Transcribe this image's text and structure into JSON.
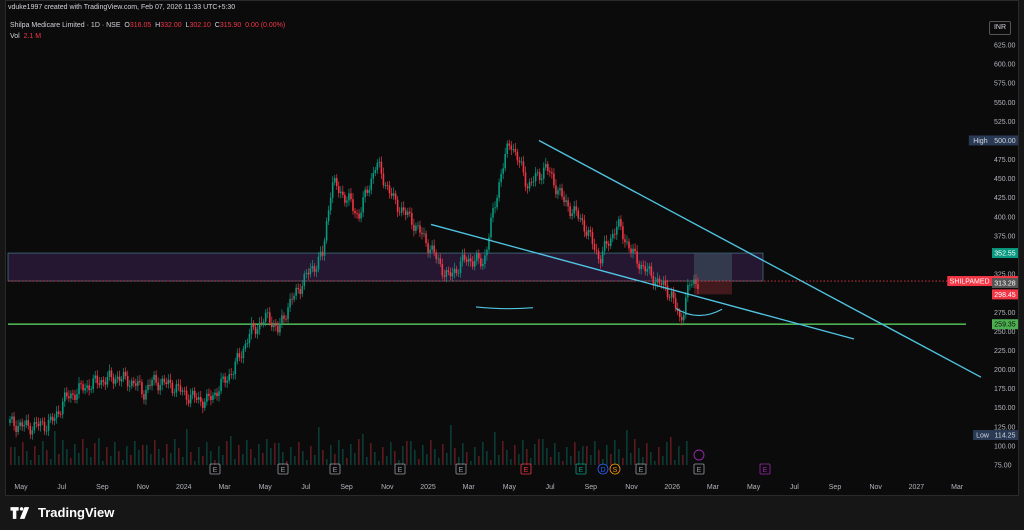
{
  "header": {
    "created": "vduke1997 created with TradingView.com, Feb 07, 2026 11:33 UTC+5:30",
    "symbol": "Shilpa Medicare Limited · 1D · NSE",
    "o_label": "O",
    "o_value": "316.05",
    "h_label": "H",
    "h_value": "332.00",
    "l_label": "L",
    "l_value": "302.10",
    "c_label": "C",
    "c_value": "315.90",
    "change": "0.00 (0.00%)",
    "vol_label": "Vol",
    "vol_value": "2.1 M"
  },
  "currency": "INR",
  "footer": {
    "brand": "TradingView"
  },
  "colors": {
    "background": "#0b0b0b",
    "up": "#089981",
    "down": "#f23645",
    "trendline": "#4fc3e0",
    "support": "#4caf50",
    "zone_fill": "#2a1a3a",
    "zone_border": "#4a8fa0"
  },
  "chart_data": {
    "type": "candlestick",
    "ylim": [
      75,
      650
    ],
    "yticks": [
      "625.00",
      "600.00",
      "575.00",
      "550.00",
      "525.00",
      "500.00",
      "475.00",
      "450.00",
      "425.00",
      "400.00",
      "375.00",
      "350.00",
      "325.00",
      "300.00",
      "275.00",
      "250.00",
      "225.00",
      "200.00",
      "175.00",
      "150.00",
      "125.00",
      "100.00",
      "75.00"
    ],
    "xticks": [
      "May",
      "Jul",
      "Sep",
      "Nov",
      "2024",
      "Mar",
      "May",
      "Jul",
      "Sep",
      "Nov",
      "2025",
      "Mar",
      "May",
      "Jul",
      "Sep",
      "Nov",
      "2026",
      "Mar",
      "May",
      "Jul",
      "Sep",
      "Nov",
      "2027",
      "Mar"
    ],
    "price_tags": [
      {
        "label": "High",
        "value": "500.00",
        "price": 500
      },
      {
        "label": "",
        "value": "352.55",
        "price": 352.55
      },
      {
        "label": "SHILPAMED",
        "value": "315.90",
        "price": 315.9
      },
      {
        "label": "",
        "value": "313.28",
        "price": 313.28
      },
      {
        "label": "",
        "value": "298.45",
        "price": 298.45
      },
      {
        "label": "",
        "value": "259.35",
        "price": 259.35
      },
      {
        "label": "Low",
        "value": "114.25",
        "price": 114.25
      }
    ],
    "price_path": [
      [
        0,
        130
      ],
      [
        0.02,
        125
      ],
      [
        0.04,
        128
      ],
      [
        0.05,
        135
      ],
      [
        0.06,
        160
      ],
      [
        0.08,
        175
      ],
      [
        0.1,
        185
      ],
      [
        0.12,
        190
      ],
      [
        0.14,
        182
      ],
      [
        0.15,
        170
      ],
      [
        0.16,
        185
      ],
      [
        0.18,
        180
      ],
      [
        0.2,
        165
      ],
      [
        0.22,
        158
      ],
      [
        0.23,
        170
      ],
      [
        0.25,
        200
      ],
      [
        0.27,
        250
      ],
      [
        0.29,
        270
      ],
      [
        0.3,
        250
      ],
      [
        0.31,
        280
      ],
      [
        0.33,
        320
      ],
      [
        0.35,
        350
      ],
      [
        0.36,
        445
      ],
      [
        0.38,
        420
      ],
      [
        0.39,
        400
      ],
      [
        0.41,
        470
      ],
      [
        0.43,
        420
      ],
      [
        0.45,
        395
      ],
      [
        0.47,
        360
      ],
      [
        0.49,
        320
      ],
      [
        0.51,
        345
      ],
      [
        0.53,
        340
      ],
      [
        0.55,
        460
      ],
      [
        0.56,
        500
      ],
      [
        0.58,
        440
      ],
      [
        0.6,
        465
      ],
      [
        0.62,
        420
      ],
      [
        0.64,
        395
      ],
      [
        0.66,
        345
      ],
      [
        0.68,
        390
      ],
      [
        0.7,
        345
      ],
      [
        0.72,
        320
      ],
      [
        0.74,
        300
      ],
      [
        0.75,
        262
      ],
      [
        0.76,
        310
      ],
      [
        0.77,
        316
      ]
    ],
    "event_markers": [
      "E",
      "E",
      "E",
      "E",
      "E",
      "E",
      "E",
      "D",
      "S",
      "E",
      "E",
      "E"
    ],
    "volume_scale": [
      0,
      5
    ]
  }
}
